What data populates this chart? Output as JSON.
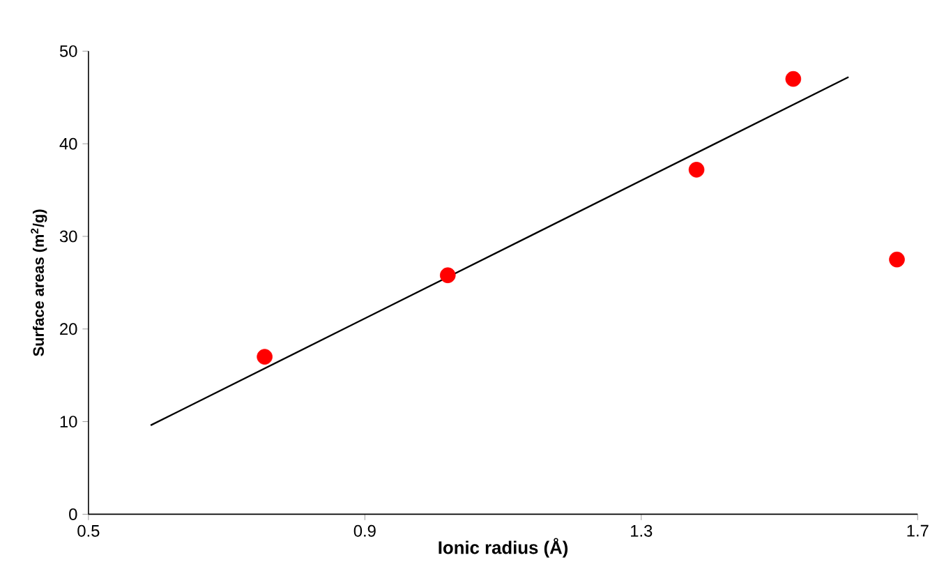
{
  "chart_data": {
    "type": "scatter",
    "xlabel": "Ionic radius (Å)",
    "ylabel": "Surface areas (m$^{2}$/g)",
    "xlim": [
      0.5,
      1.7
    ],
    "ylim": [
      0,
      50
    ],
    "xticks": [
      0.5,
      0.9,
      1.3,
      1.7
    ],
    "yticks": [
      0,
      10,
      20,
      30,
      40,
      50
    ],
    "grid": false,
    "series": [
      {
        "color": "#ff0000",
        "marker": "circle",
        "x": [
          0.755,
          1.02,
          1.38,
          1.52,
          1.67
        ],
        "values": [
          17,
          25.8,
          37.2,
          47,
          27.5
        ]
      },
      {
        "type": "line",
        "color": "#000000",
        "marker": "none",
        "line_style": "solid",
        "x": [
          0.59,
          1.6
        ],
        "values": [
          9.6,
          47.2
        ]
      }
    ]
  }
}
